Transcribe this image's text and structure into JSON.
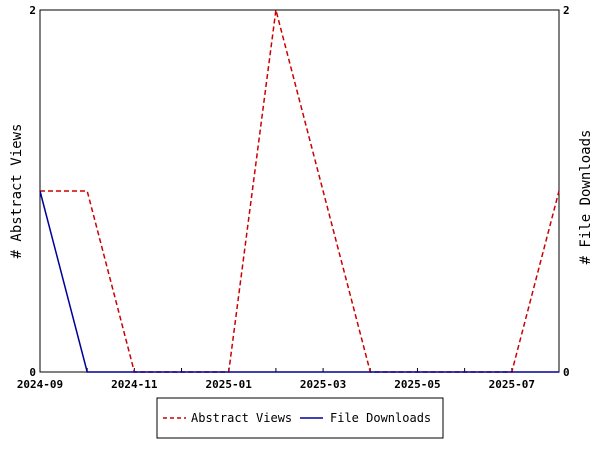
{
  "chart_data": {
    "type": "line",
    "title": "",
    "xlabel": "",
    "ylabel_left": "# Abstract Views",
    "ylabel_right": "# File Downloads",
    "x": [
      "2024-09",
      "2024-10",
      "2024-11",
      "2024-12",
      "2025-01",
      "2025-02",
      "2025-03",
      "2025-04",
      "2025-05",
      "2025-06",
      "2025-07",
      "2025-08"
    ],
    "x_tick_labels": [
      "2024-09",
      "2024-11",
      "2025-01",
      "2025-03",
      "2025-05",
      "2025-07"
    ],
    "ylim_left": [
      0,
      2
    ],
    "ylim_right": [
      0,
      2
    ],
    "y_tick_labels_left": [
      "0",
      "2"
    ],
    "y_tick_labels_right": [
      "0",
      "2"
    ],
    "series": [
      {
        "name": "Abstract Views",
        "axis": "left",
        "color": "#cc0000",
        "dash": true,
        "values": [
          1,
          1,
          0,
          0,
          0,
          2,
          1,
          0,
          0,
          0,
          0,
          1
        ]
      },
      {
        "name": "File Downloads",
        "axis": "right",
        "color": "#000099",
        "dash": false,
        "values": [
          1,
          0,
          0,
          0,
          0,
          0,
          0,
          0,
          0,
          0,
          0,
          0
        ]
      }
    ],
    "grid": false,
    "legend_position": "bottom"
  }
}
